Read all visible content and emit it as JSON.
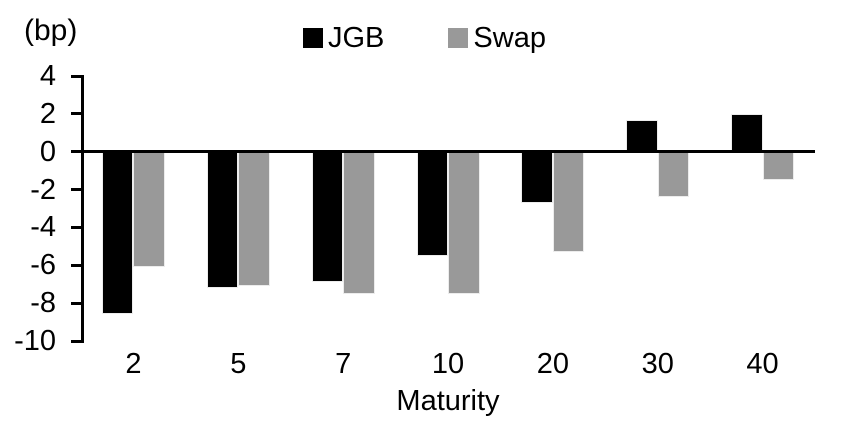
{
  "chart_data": {
    "type": "bar",
    "title": "",
    "xlabel": "Maturity",
    "ylabel": "(bp)",
    "categories": [
      "2",
      "5",
      "7",
      "10",
      "20",
      "30",
      "40"
    ],
    "series": [
      {
        "name": "JGB",
        "color": "#000000",
        "values": [
          -8.6,
          -7.2,
          -6.9,
          -5.5,
          -2.7,
          1.7,
          2.0
        ]
      },
      {
        "name": "Swap",
        "color": "#999999",
        "values": [
          -6.1,
          -7.1,
          -7.5,
          -7.5,
          -5.3,
          -2.4,
          -1.5
        ]
      }
    ],
    "ylim": [
      -10,
      4
    ],
    "yticks": [
      4,
      2,
      0,
      -2,
      -4,
      -6,
      -8,
      -10
    ],
    "grid": false,
    "legend_position": "top-center",
    "axis_color": "#000000"
  }
}
